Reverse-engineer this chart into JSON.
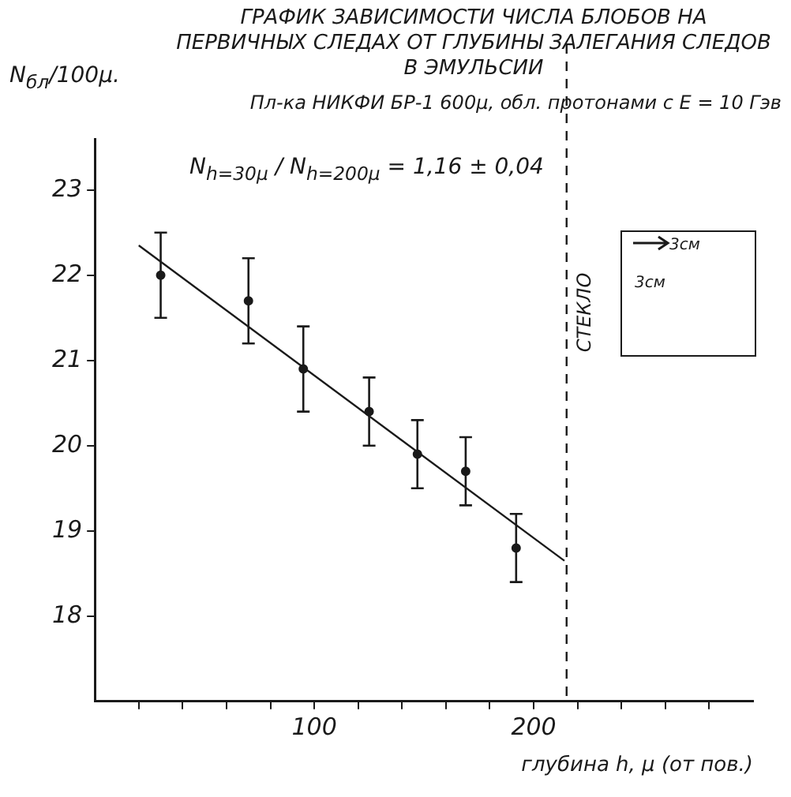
{
  "chart_data": {
    "type": "scatter",
    "title": "ГРАФИК ЗАВИСИМОСТИ ЧИСЛА БЛОБОВ НА ПЕРВИЧНЫХ СЛЕДАХ ОТ ГЛУБИНЫ ЗАЛЕГАНИЯ СЛЕДОВ В ЭМУЛЬСИИ",
    "subtitle": "Пл-ка НИКФИ БР-1 600μ, обл. протонами с E = 10 Гэв",
    "xlabel": "глубина h, μ (от пов.)",
    "ylabel": "N$_{бл}$/100μ.",
    "annotations": [
      "N$_{h=30μ}$ / N$_{h=200μ}$ = 1,16 ± 0,04",
      "3см",
      "3см"
    ],
    "series": [
      {
        "marker": "circle",
        "color": "#1a1a1a",
        "x": [
          30,
          70,
          95,
          125,
          147,
          169,
          192
        ],
        "values": [
          22.0,
          21.7,
          20.9,
          20.4,
          19.9,
          19.7,
          18.8
        ],
        "errors": [
          0.5,
          0.5,
          0.5,
          0.4,
          0.4,
          0.4,
          0.4
        ]
      },
      {
        "type": "line",
        "color": "#1a1a1a",
        "x": [
          20,
          214
        ],
        "values": [
          22.35,
          18.65
        ]
      }
    ],
    "xlim": [
      0,
      300
    ],
    "xticks": [
      {
        "value": 20,
        "label": null
      },
      {
        "value": 40,
        "label": null
      },
      {
        "value": 60,
        "label": null
      },
      {
        "value": 80,
        "label": null
      },
      100,
      {
        "value": 120,
        "label": null
      },
      {
        "value": 140,
        "label": null
      },
      {
        "value": 160,
        "label": null
      },
      {
        "value": 180,
        "label": null
      },
      200,
      {
        "value": 220,
        "label": null
      },
      {
        "value": 240,
        "label": null
      },
      {
        "value": 260,
        "label": null
      },
      {
        "value": 280,
        "label": null
      }
    ],
    "ylim": [
      17,
      23.6
    ],
    "yticks": [
      18,
      19,
      20,
      21,
      22,
      23
    ],
    "ref_lines": [
      {
        "axis": "x",
        "value": 215,
        "label": "СТЕКЛО",
        "line_style": "dashed"
      }
    ],
    "grid": false,
    "legend": false
  }
}
